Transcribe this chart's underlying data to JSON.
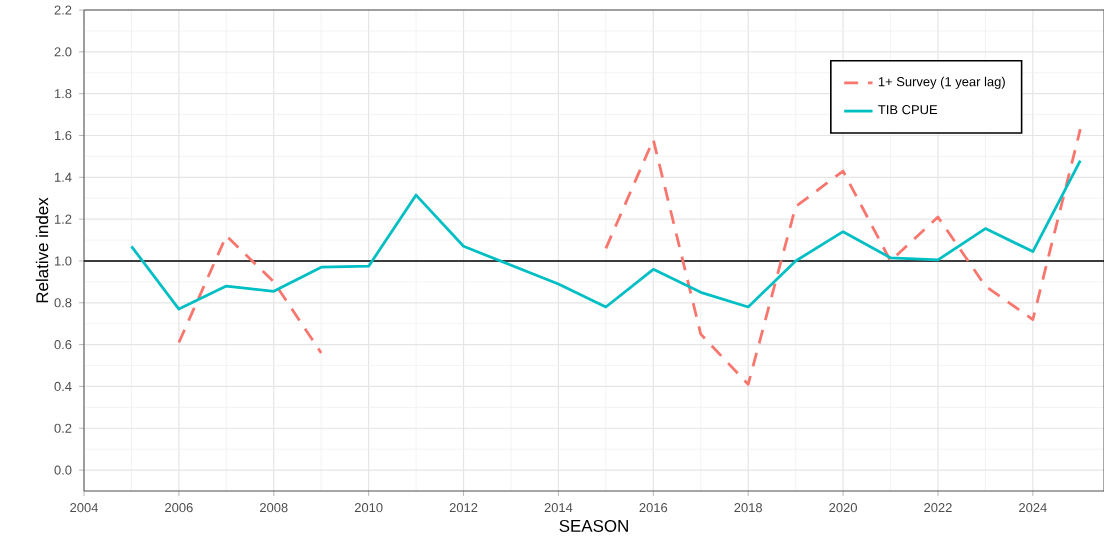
{
  "chart_data": {
    "type": "line",
    "xlabel": "SEASON",
    "ylabel": "Relative index",
    "xlim": [
      2004,
      2025.5
    ],
    "ylim": [
      -0.1,
      2.2
    ],
    "xticks": [
      2004,
      2006,
      2008,
      2010,
      2012,
      2014,
      2016,
      2018,
      2020,
      2022,
      2024
    ],
    "yticks": [
      {
        "value": 0,
        "label": "0.0"
      },
      {
        "value": 0.2,
        "label": "0.2"
      },
      {
        "value": 0.4,
        "label": "0.4"
      },
      {
        "value": 0.6,
        "label": "0.6"
      },
      {
        "value": 0.8,
        "label": "0.8"
      },
      {
        "value": 1,
        "label": "1.0"
      },
      {
        "value": 1.2,
        "label": "1.2"
      },
      {
        "value": 1.4,
        "label": "1.4"
      },
      {
        "value": 1.6,
        "label": "1.6"
      },
      {
        "value": 1.8,
        "label": "1.8"
      },
      {
        "value": 2,
        "label": "2.0"
      },
      {
        "value": 2.2,
        "label": "2.2"
      }
    ],
    "grid": true,
    "legend": "top right",
    "marker": "none",
    "ref_lines": [
      {
        "axis": "y",
        "value": 1,
        "color": "#000000"
      }
    ],
    "series": [
      {
        "name": "1+ Survey (1 year lag)",
        "color": "#f8766d",
        "line_style": "dashed",
        "x": [
          2006,
          2007,
          2008,
          2009,
          2010,
          2011,
          2012,
          2013,
          2014,
          2015,
          2016,
          2017,
          2018,
          2019,
          2020,
          2021,
          2022,
          2023,
          2024,
          2025
        ],
        "values": [
          0.61,
          1.12,
          0.9,
          0.56,
          null,
          null,
          null,
          null,
          null,
          1.06,
          1.58,
          0.65,
          0.41,
          1.26,
          1.43,
          1.0,
          1.21,
          0.88,
          0.72,
          1.63
        ]
      },
      {
        "name": "TIB CPUE",
        "color": "#00bfc4",
        "line_style": "solid",
        "x": [
          2005,
          2006,
          2007,
          2008,
          2009,
          2010,
          2011,
          2012,
          2014,
          2015,
          2016,
          2017,
          2018,
          2019,
          2020,
          2021,
          2022,
          2023,
          2024,
          2025
        ],
        "values": [
          1.07,
          0.77,
          0.88,
          0.855,
          0.97,
          0.975,
          1.315,
          1.07,
          0.89,
          0.78,
          0.96,
          0.85,
          0.78,
          1.0,
          1.14,
          1.015,
          1.005,
          1.155,
          1.045,
          1.48
        ]
      }
    ]
  }
}
